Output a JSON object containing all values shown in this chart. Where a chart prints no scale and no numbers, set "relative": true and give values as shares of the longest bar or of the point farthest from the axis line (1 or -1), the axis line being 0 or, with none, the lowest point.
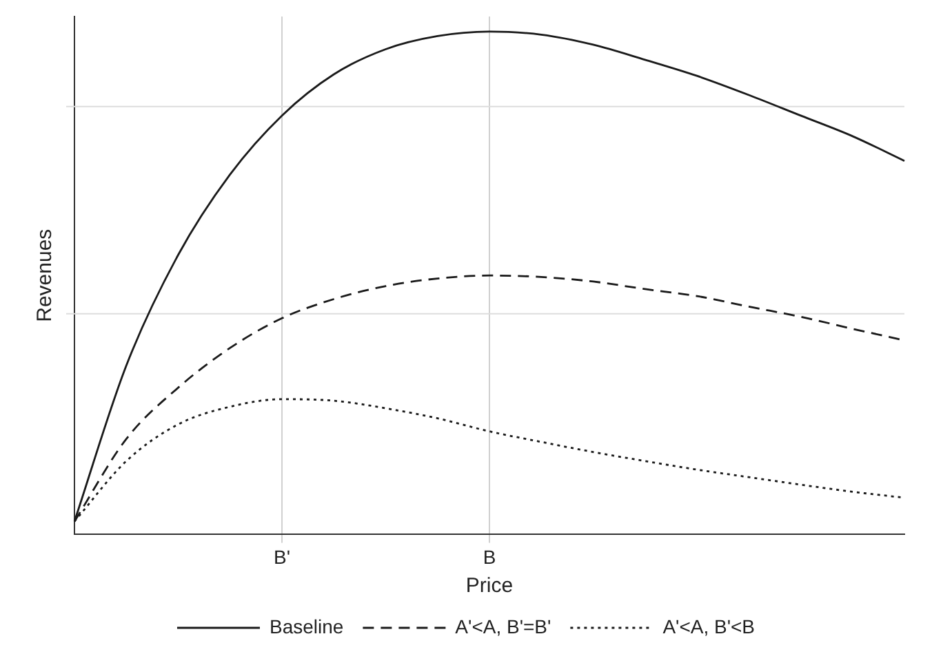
{
  "chart_data": {
    "type": "line",
    "relative": true,
    "xlabel": "Price",
    "ylabel": "Revenues",
    "categories": [
      null,
      null,
      null,
      null,
      "B'",
      null,
      null,
      null,
      "B",
      null,
      null,
      null,
      null,
      null,
      null,
      null,
      null
    ],
    "grid": "x",
    "legend": "bottom",
    "marker": "none",
    "ref_lines": [
      {
        "axis": "y",
        "value": 0.851,
        "color": "#dddddd"
      },
      {
        "axis": "y",
        "value": 0.439,
        "color": "#dddddd"
      }
    ],
    "series": [
      {
        "name": "Baseline",
        "color": "#1a1a1a",
        "line_style": "solid",
        "values": [
          0.026,
          0.336,
          0.556,
          0.716,
          0.833,
          0.915,
          0.965,
          0.991,
          1,
          0.994,
          0.974,
          0.944,
          0.912,
          0.874,
          0.833,
          0.792,
          0.743
        ]
      },
      {
        "name": "A'<A, B'=B'",
        "color": "#1a1a1a",
        "line_style": "dashed",
        "values": [
          0.026,
          0.19,
          0.292,
          0.371,
          0.43,
          0.468,
          0.494,
          0.509,
          0.515,
          0.512,
          0.503,
          0.488,
          0.474,
          0.453,
          0.433,
          0.409,
          0.386
        ]
      },
      {
        "name": "A'<A, B'<B",
        "color": "#1a1a1a",
        "line_style": "dotted",
        "values": [
          0.026,
          0.146,
          0.219,
          0.254,
          0.269,
          0.266,
          0.251,
          0.231,
          0.205,
          0.184,
          0.164,
          0.146,
          0.129,
          0.114,
          0.099,
          0.085,
          0.073
        ]
      }
    ]
  }
}
